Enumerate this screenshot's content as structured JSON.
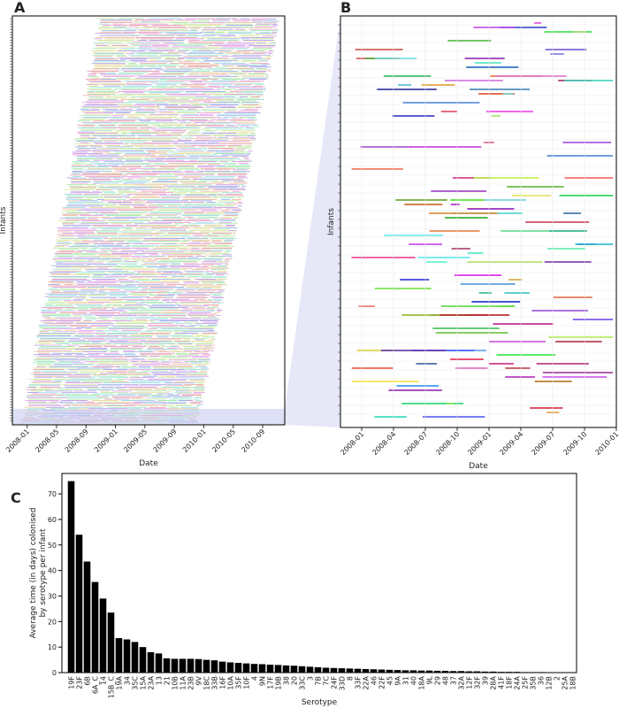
{
  "chart_data": [
    {
      "type": "timeline",
      "panel_label": "A",
      "xlabel": "Date",
      "ylabel": "Infants",
      "xlim": [
        "2007-11",
        "2010-12"
      ],
      "xticks": [
        "2008-01",
        "2008-05",
        "2008-09",
        "2009-01",
        "2009-05",
        "2009-09",
        "2010-01",
        "2010-05",
        "2010-09"
      ]
    },
    {
      "type": "timeline",
      "panel_label": "B",
      "xlabel": "Date",
      "ylabel": "Infants",
      "xlim": [
        "2007-11",
        "2010-01"
      ],
      "xticks": [
        "2008-01",
        "2008-04",
        "2008-07",
        "2008-10",
        "2009-01",
        "2009-04",
        "2009-07",
        "2009-10",
        "2010-01"
      ]
    },
    {
      "type": "bar",
      "panel_label": "C",
      "xlabel": "Serotype",
      "ylabel": [
        "Average time (in days) colonised",
        "by serotype per infant"
      ],
      "color": "#000000",
      "ylim": [
        0,
        78
      ],
      "yticks": [
        0,
        10,
        20,
        30,
        40,
        50,
        60,
        70
      ],
      "categories": [
        "19F",
        "23F",
        "6B",
        "6A_C",
        "14",
        "15B_C",
        "19A",
        "34",
        "35C",
        "15A",
        "23A",
        "13",
        "21",
        "10B",
        "11A",
        "23B",
        "9V",
        "18C",
        "33B",
        "16F",
        "10A",
        "35F",
        "10F",
        "4",
        "9N",
        "17F",
        "19B",
        "38",
        "20",
        "33C",
        "3",
        "7B",
        "7C",
        "24F",
        "33D",
        "8",
        "33F",
        "22A",
        "46",
        "22F",
        "45",
        "9A",
        "31",
        "40",
        "18A",
        "9L",
        "29",
        "48",
        "37",
        "32A",
        "12F",
        "32F",
        "39",
        "28A",
        "41F",
        "18F",
        "24A",
        "25F",
        "35B",
        "36",
        "12B",
        "2",
        "25A",
        "18B"
      ],
      "values": [
        75,
        54,
        43.5,
        35.5,
        29,
        23.5,
        13.5,
        13,
        12,
        10,
        8,
        7.5,
        5.6,
        5.4,
        5.4,
        5.4,
        5.3,
        5.0,
        4.8,
        4.3,
        4.0,
        3.8,
        3.6,
        3.4,
        3.3,
        3.1,
        3.0,
        2.8,
        2.7,
        2.5,
        2.3,
        2.1,
        1.9,
        1.8,
        1.7,
        1.6,
        1.5,
        1.4,
        1.3,
        1.2,
        1.1,
        1.0,
        0.9,
        0.9,
        0.8,
        0.8,
        0.7,
        0.7,
        0.6,
        0.6,
        0.5,
        0.5,
        0.4,
        0.4,
        0.3,
        0.3,
        0.3,
        0.2,
        0.2,
        0.2,
        0.15,
        0.1,
        0.1,
        0.1
      ]
    }
  ]
}
